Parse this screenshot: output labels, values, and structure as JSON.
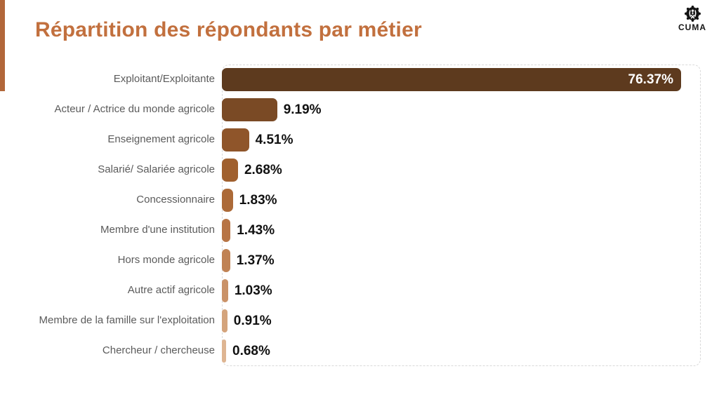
{
  "page": {
    "title": "Répartition des répondants par métier",
    "title_color": "#c2703e",
    "accent_color": "#b2673a"
  },
  "logo": {
    "text": "CUMA",
    "color": "#141414"
  },
  "chart_data": {
    "type": "bar",
    "orientation": "horizontal",
    "title": "Répartition des répondants par métier",
    "categories": [
      "Exploitant/Exploitante",
      "Acteur / Actrice du monde agricole",
      "Enseignement agricole",
      "Salarié/ Salariée agricole",
      "Concessionnaire",
      "Membre d'une institution",
      "Hors monde agricole",
      "Autre actif agricole",
      "Membre de la famille sur l'exploitation",
      "Chercheur / chercheuse"
    ],
    "values": [
      76.37,
      9.19,
      4.51,
      2.68,
      1.83,
      1.43,
      1.37,
      1.03,
      0.91,
      0.68
    ],
    "value_labels": [
      "76.37%",
      "9.19%",
      "4.51%",
      "2.68%",
      "1.83%",
      "1.43%",
      "1.37%",
      "1.03%",
      "0.91%",
      "0.68%"
    ],
    "bar_colors": [
      "#5d3a1e",
      "#7a4a25",
      "#8f552a",
      "#a0602e",
      "#ac6a38",
      "#b77445",
      "#c08254",
      "#ca9268",
      "#d4a47c",
      "#deb592"
    ],
    "xlim": [
      0,
      80
    ],
    "grid": false,
    "legend": "none",
    "category_label_color": "#5b5b5b",
    "value_label_color": "#111111",
    "inside_value_label_color": "#ffffff",
    "plot_border_style": "dashed"
  }
}
